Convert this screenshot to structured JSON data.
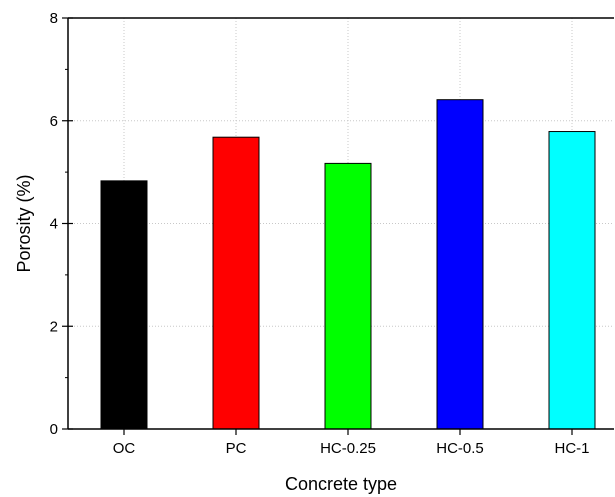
{
  "chart_data": {
    "type": "bar",
    "title": "",
    "xlabel": "Concrete type",
    "ylabel": "Porosity (%)",
    "categories": [
      "OC",
      "PC",
      "HC-0.25",
      "HC-0.5",
      "HC-1"
    ],
    "values": [
      4.83,
      5.68,
      5.17,
      6.41,
      5.79
    ],
    "colors": [
      "#000000",
      "#ff0000",
      "#00ff00",
      "#0000ff",
      "#00ffff"
    ],
    "ylim": [
      0,
      8
    ],
    "yticks": [
      0,
      2,
      4,
      6,
      8
    ],
    "grid": true
  }
}
